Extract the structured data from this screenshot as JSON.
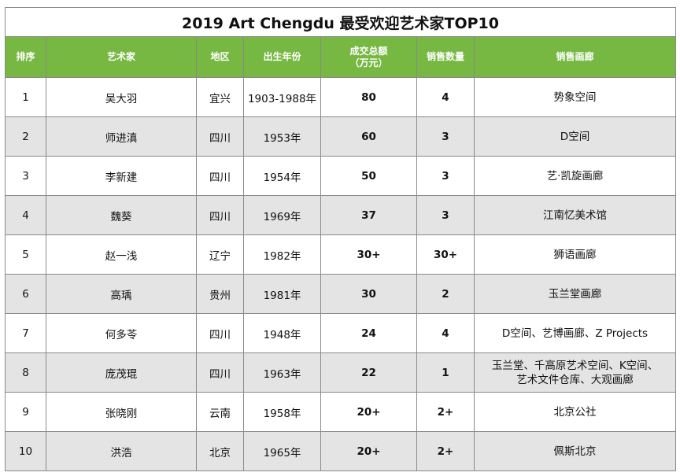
{
  "title": "2019 Art Chengdu 最受欢迎艺术家TOP10",
  "columns": [
    {
      "label": "排序"
    },
    {
      "label": "艺术家"
    },
    {
      "label": "地区"
    },
    {
      "label": "出生年份"
    },
    {
      "label": "成交总额\n（万元）"
    },
    {
      "label": "销售数量"
    },
    {
      "label": "销售画廊"
    }
  ],
  "rows": [
    {
      "rank": "1",
      "artist": "吴大羽",
      "region": "宜兴",
      "born": "1903-1988年",
      "total": "80",
      "qty": "4",
      "gallery": "势象空间"
    },
    {
      "rank": "2",
      "artist": "师进滇",
      "region": "四川",
      "born": "1953年",
      "total": "60",
      "qty": "3",
      "gallery": "D空间"
    },
    {
      "rank": "3",
      "artist": "李新建",
      "region": "四川",
      "born": "1954年",
      "total": "50",
      "qty": "3",
      "gallery": "艺·凯旋画廊"
    },
    {
      "rank": "4",
      "artist": "魏葵",
      "region": "四川",
      "born": "1969年",
      "total": "37",
      "qty": "3",
      "gallery": "江南忆美术馆"
    },
    {
      "rank": "5",
      "artist": "赵一浅",
      "region": "辽宁",
      "born": "1982年",
      "total": "30+",
      "qty": "30+",
      "gallery": "狮语画廊"
    },
    {
      "rank": "6",
      "artist": "高瑀",
      "region": "贵州",
      "born": "1981年",
      "total": "30",
      "qty": "2",
      "gallery": "玉兰堂画廊"
    },
    {
      "rank": "7",
      "artist": "何多苓",
      "region": "四川",
      "born": "1948年",
      "total": "24",
      "qty": "4",
      "gallery": "D空间、艺博画廊、Z Projects"
    },
    {
      "rank": "8",
      "artist": "庞茂琨",
      "region": "四川",
      "born": "1963年",
      "total": "22",
      "qty": "1",
      "gallery": "玉兰堂、千高原艺术空间、K空间、\n艺术文件仓库、大观画廊"
    },
    {
      "rank": "9",
      "artist": "张晓刚",
      "region": "云南",
      "born": "1958年",
      "total": "20+",
      "qty": "2+",
      "gallery": "北京公社"
    },
    {
      "rank": "10",
      "artist": "洪浩",
      "region": "北京",
      "born": "1965年",
      "total": "20+",
      "qty": "2+",
      "gallery": "佩斯北京"
    }
  ],
  "colors": {
    "header_green": "#77b843",
    "stripe_gray": "#e4e4e4"
  }
}
